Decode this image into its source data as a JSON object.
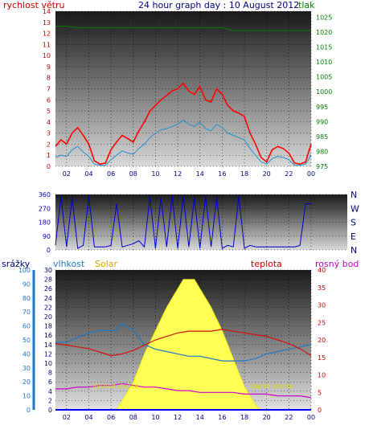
{
  "header": {
    "title": "24 hour graph day : 10 August 2012",
    "left_label": "rychlost větru",
    "right_label": "tlak"
  },
  "labels": {
    "humidity_rain_title": "srážky",
    "humidity_title": "vlhkost",
    "solar_title": "Solar",
    "temp_title": "teplota",
    "dew_title": "rosný bod",
    "sunrise": "východ slunce",
    "sunset": "západ slunce"
  },
  "colors": {
    "wind": "#ff0000",
    "gust": "#ff0000",
    "wind_avg": "#1e90c8",
    "pressure": "#008000",
    "direction": "#0000cc",
    "humidity": "#1e78c8",
    "temperature": "#d01010",
    "dew": "#d000d0",
    "solar": "#ffff55",
    "rain": "#0000ff"
  },
  "chart_data": [
    {
      "type": "line",
      "name": "wind-pressure",
      "title": "24 hour graph day : 10 August 2012",
      "xticks": [
        "02",
        "04",
        "06",
        "08",
        "10",
        "12",
        "14",
        "16",
        "18",
        "20",
        "22",
        "00"
      ],
      "xlim": [
        1,
        24
      ],
      "ylabel_left": "rychlost větru",
      "ylim_left": [
        0,
        14
      ],
      "yticks_left": [
        "0",
        "1",
        "2",
        "3",
        "4",
        "5",
        "6",
        "7",
        "8",
        "9",
        "10",
        "11",
        "12",
        "13",
        "14"
      ],
      "ylabel_right": "tlak",
      "ylim_right": [
        975,
        1027
      ],
      "yticks_right": [
        "975",
        "980",
        "985",
        "990",
        "995",
        "1000",
        "1005",
        "1010",
        "1015",
        "1020",
        "1025"
      ],
      "series": [
        {
          "key": "gust",
          "axis": "left",
          "x": [
            1,
            1.5,
            2,
            2.5,
            3,
            3.5,
            4,
            4.5,
            5,
            5.5,
            6,
            6.5,
            7,
            7.5,
            8,
            8.5,
            9,
            9.5,
            10,
            10.5,
            11,
            11.5,
            12,
            12.5,
            13,
            13.5,
            14,
            14.5,
            15,
            15.5,
            16,
            16.5,
            17,
            17.5,
            18,
            18.5,
            19,
            19.5,
            20,
            20.5,
            21,
            21.5,
            22,
            22.5,
            23,
            23.5,
            24
          ],
          "y": [
            1.8,
            2.4,
            2.0,
            3.0,
            3.5,
            2.8,
            2.0,
            0.5,
            0.2,
            0.3,
            1.5,
            2.2,
            2.8,
            2.5,
            2.2,
            3.2,
            4.0,
            5.0,
            5.5,
            6.0,
            6.4,
            6.8,
            7.0,
            7.5,
            6.8,
            6.5,
            7.2,
            6.0,
            5.8,
            7.0,
            6.5,
            5.5,
            5.0,
            4.8,
            4.5,
            3.0,
            2.0,
            0.8,
            0.4,
            1.5,
            1.8,
            1.6,
            1.2,
            0.3,
            0.2,
            0.4,
            2.0
          ]
        },
        {
          "key": "wind_avg",
          "axis": "left",
          "x": [
            1,
            1.5,
            2,
            2.5,
            3,
            3.5,
            4,
            4.5,
            5,
            5.5,
            6,
            6.5,
            7,
            7.5,
            8,
            8.5,
            9,
            9.5,
            10,
            10.5,
            11,
            11.5,
            12,
            12.5,
            13,
            13.5,
            14,
            14.5,
            15,
            15.5,
            16,
            16.5,
            17,
            17.5,
            18,
            18.5,
            19,
            19.5,
            20,
            20.5,
            21,
            21.5,
            22,
            22.5,
            23,
            23.5,
            24
          ],
          "y": [
            0.8,
            1.0,
            0.9,
            1.5,
            1.8,
            1.3,
            0.9,
            0.2,
            0.1,
            0.1,
            0.6,
            1.0,
            1.4,
            1.2,
            1.1,
            1.6,
            2.0,
            2.6,
            3.0,
            3.3,
            3.4,
            3.6,
            3.8,
            4.2,
            3.8,
            3.6,
            4.0,
            3.4,
            3.2,
            3.8,
            3.5,
            3.0,
            2.8,
            2.6,
            2.4,
            1.6,
            1.0,
            0.4,
            0.2,
            0.7,
            0.9,
            0.8,
            0.6,
            0.1,
            0.1,
            0.2,
            1.0
          ]
        },
        {
          "key": "pressure",
          "axis": "right",
          "x": [
            1,
            2,
            3,
            4,
            5,
            6,
            7,
            8,
            9,
            10,
            11,
            12,
            13,
            14,
            15,
            16,
            17,
            18,
            19,
            20,
            21,
            22,
            23,
            24
          ],
          "y": [
            1022,
            1022,
            1021.5,
            1021.5,
            1021.5,
            1021.5,
            1021.5,
            1021.5,
            1021.5,
            1021.5,
            1021.5,
            1021.5,
            1021.5,
            1021.5,
            1021.5,
            1021.5,
            1020.5,
            1020.5,
            1020.5,
            1020.5,
            1020.5,
            1020.5,
            1020.5,
            1020.5
          ]
        }
      ]
    },
    {
      "type": "line",
      "name": "wind-direction",
      "xticks": [
        "02",
        "04",
        "06",
        "08",
        "10",
        "12",
        "14",
        "16",
        "18",
        "20",
        "22",
        "00"
      ],
      "xlim": [
        1,
        24
      ],
      "ylim": [
        0,
        360
      ],
      "yticks": [
        "0",
        "90",
        "180",
        "270",
        "360"
      ],
      "compass": [
        "N",
        "W",
        "S",
        "E",
        "N"
      ],
      "series": [
        {
          "key": "direction",
          "x": [
            1,
            1.5,
            2,
            2.5,
            3,
            3.5,
            4,
            4.5,
            5,
            5.5,
            6,
            6.5,
            7,
            7.5,
            8,
            8.5,
            9,
            9.5,
            10,
            10.5,
            11,
            11.5,
            12,
            12.5,
            13,
            13.5,
            14,
            14.5,
            15,
            15.5,
            16,
            16.5,
            17,
            17.5,
            18,
            18.5,
            19,
            19.5,
            20,
            20.5,
            21,
            21.5,
            22,
            22.5,
            23,
            23.5,
            24
          ],
          "y": [
            30,
            350,
            20,
            340,
            10,
            30,
            350,
            20,
            20,
            20,
            30,
            300,
            20,
            30,
            40,
            60,
            20,
            350,
            10,
            340,
            20,
            350,
            10,
            350,
            20,
            340,
            10,
            350,
            20,
            340,
            10,
            30,
            20,
            350,
            10,
            30,
            20,
            20,
            20,
            20,
            20,
            20,
            20,
            20,
            30,
            300,
            300
          ]
        }
      ]
    },
    {
      "type": "line",
      "name": "temp-humidity-solar",
      "xticks": [
        "02",
        "04",
        "06",
        "08",
        "10",
        "12",
        "14",
        "16",
        "18",
        "20",
        "22",
        "00"
      ],
      "xlim": [
        1,
        24
      ],
      "ylim_left": [
        0,
        30
      ],
      "yticks_left": [
        "0",
        "2",
        "4",
        "6",
        "8",
        "10",
        "12",
        "14",
        "16",
        "18",
        "20",
        "22",
        "24",
        "26",
        "28",
        "30"
      ],
      "ylim_rain": [
        0,
        100
      ],
      "yticks_rain": [
        "0",
        "10",
        "20",
        "30",
        "40",
        "50",
        "60",
        "70",
        "80",
        "90",
        "100"
      ],
      "ylim_right": [
        0,
        40
      ],
      "yticks_right": [
        "0",
        "5",
        "10",
        "15",
        "20",
        "25",
        "30",
        "35",
        "40"
      ],
      "series": [
        {
          "key": "humidity",
          "axis": "left",
          "x": [
            1,
            2,
            3,
            4,
            5,
            6,
            6.5,
            7,
            8,
            9,
            10,
            11,
            12,
            13,
            14,
            15,
            16,
            17,
            18,
            19,
            20,
            21,
            22,
            23,
            24
          ],
          "y": [
            14.5,
            14.5,
            15.5,
            16.5,
            17,
            17,
            17,
            18.5,
            17,
            14,
            13,
            12.5,
            12,
            11.5,
            11.5,
            11,
            10.5,
            10.5,
            10.5,
            11,
            12,
            12.5,
            13,
            13.5,
            14
          ]
        },
        {
          "key": "temperature",
          "axis": "right",
          "x": [
            1,
            2,
            3,
            4,
            5,
            6,
            7,
            8,
            9,
            10,
            11,
            12,
            13,
            14,
            15,
            16,
            17,
            18,
            19,
            20,
            21,
            22,
            23,
            24
          ],
          "y": [
            19,
            18.5,
            18,
            17.5,
            16.5,
            15.5,
            16,
            17,
            18.5,
            20,
            21,
            22,
            22.5,
            22.5,
            22.5,
            23,
            22.5,
            22,
            21.5,
            21,
            20,
            19,
            17.5,
            15.5
          ]
        },
        {
          "key": "dew",
          "axis": "right",
          "x": [
            1,
            2,
            3,
            4,
            5,
            6,
            7,
            8,
            9,
            10,
            11,
            12,
            13,
            14,
            15,
            16,
            17,
            18,
            19,
            20,
            21,
            22,
            23,
            24
          ],
          "y": [
            6,
            6,
            6.5,
            6.5,
            7,
            7,
            7.5,
            7,
            6.5,
            6.5,
            6,
            5.5,
            5.5,
            5,
            5,
            5,
            5,
            4.5,
            4.5,
            4.5,
            4,
            4,
            4,
            3.5
          ]
        },
        {
          "key": "solar",
          "axis": "left",
          "x": [
            6.5,
            7,
            8,
            9,
            10,
            11,
            12,
            12.5,
            13,
            13.5,
            14,
            15,
            16,
            17,
            18,
            19,
            19.5
          ],
          "y": [
            0,
            2,
            6,
            12,
            17,
            22,
            26,
            28,
            28,
            28,
            26,
            22,
            17,
            11,
            5,
            1,
            0
          ]
        },
        {
          "key": "rain",
          "axis": "rain",
          "x": [
            1,
            24
          ],
          "y": [
            0,
            0
          ]
        }
      ]
    }
  ]
}
